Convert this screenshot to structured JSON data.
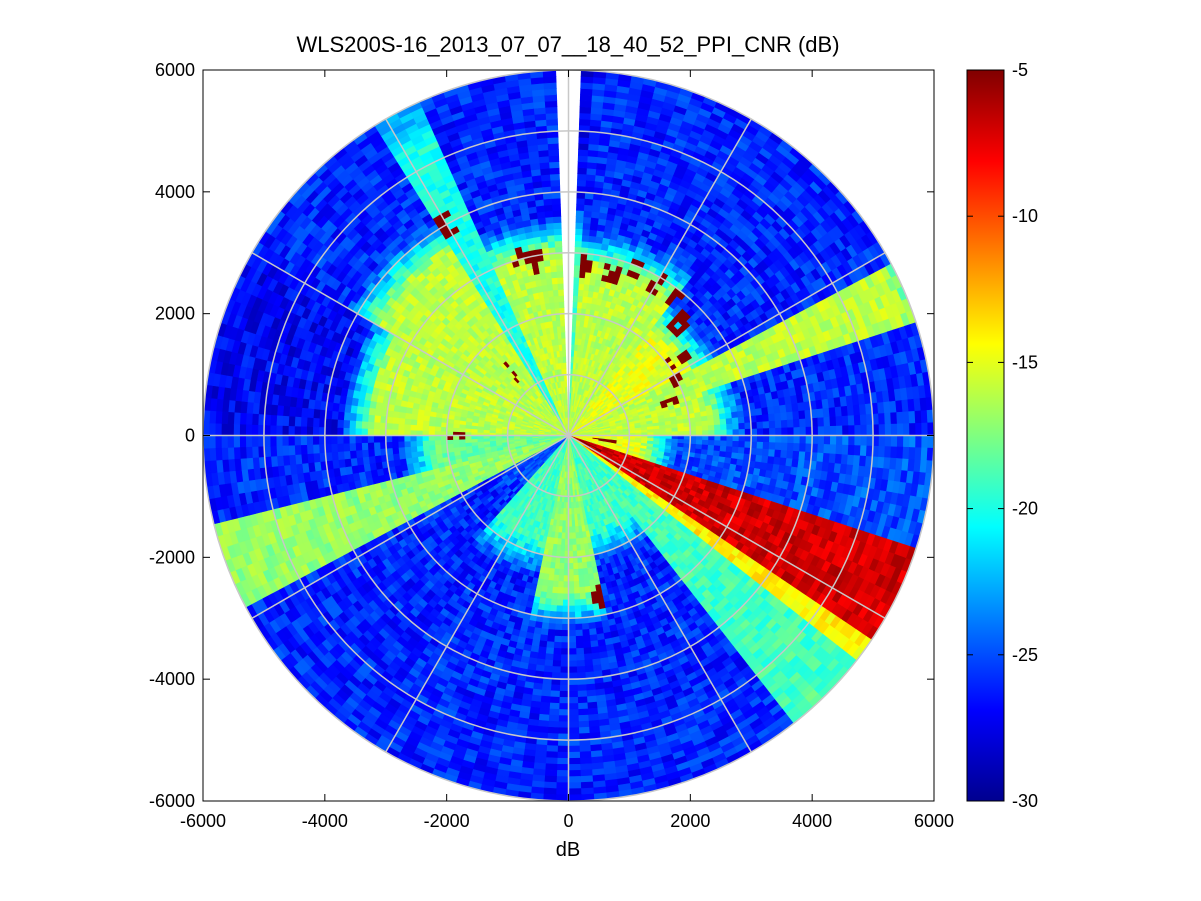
{
  "chart_data": {
    "type": "heatmap",
    "subtype": "polar-ppi",
    "title": "WLS200S-16_2013_07_07__18_40_52_PPI_CNR (dB)",
    "xlabel": "dB",
    "ylabel": "",
    "xlim": [
      -6000,
      6000
    ],
    "ylim": [
      -6000,
      6000
    ],
    "xticks": [
      -6000,
      -4000,
      -2000,
      0,
      2000,
      4000,
      6000
    ],
    "yticks": [
      -6000,
      -4000,
      -2000,
      0,
      2000,
      4000,
      6000
    ],
    "xtick_labels": [
      "-6000",
      "-4000",
      "-2000",
      "0",
      "2000",
      "4000",
      "6000"
    ],
    "ytick_labels": [
      "-6000",
      "-4000",
      "-2000",
      "0",
      "2000",
      "4000",
      "6000"
    ],
    "max_range": 6000,
    "range_rings": [
      1000,
      2000,
      3000,
      4000,
      5000,
      6000
    ],
    "spokes_deg": [
      0,
      30,
      60,
      90,
      120,
      150,
      180,
      210,
      240,
      270,
      300,
      330
    ],
    "grid": true,
    "colormap": "jet",
    "colorbar": {
      "range": [
        -30,
        -5
      ],
      "ticks": [
        -30,
        -25,
        -20,
        -15,
        -10,
        -5
      ],
      "tick_labels": [
        "-30",
        "-25",
        "-20",
        "-15",
        "-10",
        "-5"
      ],
      "placement": "right"
    },
    "sectors": [
      {
        "az_start": 0,
        "az_end": 4,
        "near_cnr": -19,
        "far_cnr": -27,
        "transition_range": 3200
      },
      {
        "az_start": 4,
        "az_end": 38,
        "near_cnr": -16,
        "far_cnr": -26,
        "transition_range": 2800
      },
      {
        "az_start": 38,
        "az_end": 62,
        "near_cnr": -15,
        "far_cnr": -26,
        "transition_range": 2200
      },
      {
        "az_start": 62,
        "az_end": 72,
        "near_cnr": -16,
        "far_cnr": -21,
        "transition_range": 5800
      },
      {
        "az_start": 72,
        "az_end": 90,
        "near_cnr": -16,
        "far_cnr": -26,
        "transition_range": 2300
      },
      {
        "az_start": 90,
        "az_end": 108,
        "near_cnr": -15,
        "far_cnr": -25,
        "transition_range": 1200
      },
      {
        "az_start": 108,
        "az_end": 125,
        "near_cnr": -7,
        "far_cnr": -7,
        "transition_range": 6000
      },
      {
        "az_start": 125,
        "az_end": 128,
        "near_cnr": -14,
        "far_cnr": -14,
        "transition_range": 6000
      },
      {
        "az_start": 128,
        "az_end": 143,
        "near_cnr": -19,
        "far_cnr": -21,
        "transition_range": 5800
      },
      {
        "az_start": 143,
        "az_end": 168,
        "near_cnr": -19,
        "far_cnr": -26,
        "transition_range": 1600
      },
      {
        "az_start": 168,
        "az_end": 192,
        "near_cnr": -17,
        "far_cnr": -26,
        "transition_range": 2600
      },
      {
        "az_start": 192,
        "az_end": 222,
        "near_cnr": -19,
        "far_cnr": -26,
        "transition_range": 1800
      },
      {
        "az_start": 222,
        "az_end": 242,
        "near_cnr": -25,
        "far_cnr": -26,
        "transition_range": 1000
      },
      {
        "az_start": 242,
        "az_end": 256,
        "near_cnr": -17,
        "far_cnr": -16,
        "transition_range": 6000
      },
      {
        "az_start": 256,
        "az_end": 270,
        "near_cnr": -18,
        "far_cnr": -26,
        "transition_range": 2200
      },
      {
        "az_start": 270,
        "az_end": 300,
        "near_cnr": -16,
        "far_cnr": -27,
        "transition_range": 3200
      },
      {
        "az_start": 300,
        "az_end": 328,
        "near_cnr": -16,
        "far_cnr": -26,
        "transition_range": 3600
      },
      {
        "az_start": 328,
        "az_end": 336,
        "near_cnr": -20,
        "far_cnr": -23,
        "transition_range": 5400
      },
      {
        "az_start": 336,
        "az_end": 358,
        "near_cnr": -16,
        "far_cnr": -26,
        "transition_range": 3000
      }
    ],
    "blank_sector": {
      "az_start": -1,
      "az_end": 1
    },
    "hotspots": [
      {
        "az": 6,
        "range": 2800,
        "cnr": -5
      },
      {
        "az": 15,
        "range": 2750,
        "cnr": -5
      },
      {
        "az": 22,
        "range": 2950,
        "cnr": -5
      },
      {
        "az": 30,
        "range": 2900,
        "cnr": -5
      },
      {
        "az": 38,
        "range": 2850,
        "cnr": -5
      },
      {
        "az": 45,
        "range": 2600,
        "cnr": -5
      },
      {
        "az": 55,
        "range": 2200,
        "cnr": -5
      },
      {
        "az": 63,
        "range": 1950,
        "cnr": -5
      },
      {
        "az": 72,
        "range": 1800,
        "cnr": -5
      },
      {
        "az": 350,
        "range": 2900,
        "cnr": -5
      },
      {
        "az": 345,
        "range": 3050,
        "cnr": -5
      },
      {
        "az": 330,
        "range": 4000,
        "cnr": -5
      },
      {
        "az": 318,
        "range": 1400,
        "cnr": -5
      },
      {
        "az": 270,
        "range": 1900,
        "cnr": -5
      },
      {
        "az": 98,
        "range": 600,
        "cnr": -5
      },
      {
        "az": 115,
        "range": 400,
        "cnr": -5
      },
      {
        "az": 170,
        "range": 2700,
        "cnr": -5
      }
    ]
  }
}
